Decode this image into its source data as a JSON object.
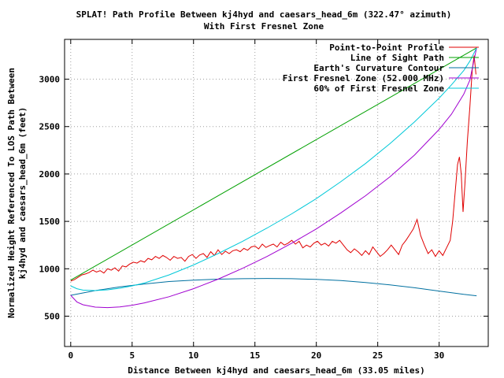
{
  "chart_data": {
    "type": "line",
    "title_line1": "SPLAT! Path Profile Between kj4hyd and caesars_head_6m (322.47° azimuth)",
    "title_line2": "With First Fresnel Zone",
    "xlabel": "Distance Between kj4hyd and caesars_head_6m (33.05 miles)",
    "ylabel_line1": "Normalized Height Referenced To LOS Path Between",
    "ylabel_line2": "kj4hyd and caesars_head_6m (feet)",
    "xlim": [
      -0.5,
      34
    ],
    "ylim": [
      180,
      3420
    ],
    "x_ticks": [
      0,
      5,
      10,
      15,
      20,
      25,
      30
    ],
    "y_ticks": [
      500,
      1000,
      1500,
      2000,
      2500,
      3000
    ],
    "grid": true,
    "legend_position": "top-right",
    "series": [
      {
        "name": "Point-to-Point Profile",
        "color": "#e00000",
        "points": [
          [
            0,
            870
          ],
          [
            0.3,
            885
          ],
          [
            0.6,
            910
          ],
          [
            0.9,
            935
          ],
          [
            1.2,
            945
          ],
          [
            1.5,
            960
          ],
          [
            1.8,
            985
          ],
          [
            2.1,
            965
          ],
          [
            2.4,
            980
          ],
          [
            2.7,
            955
          ],
          [
            3.0,
            1000
          ],
          [
            3.3,
            985
          ],
          [
            3.6,
            1010
          ],
          [
            3.9,
            975
          ],
          [
            4.2,
            1030
          ],
          [
            4.5,
            1020
          ],
          [
            4.8,
            1050
          ],
          [
            5.1,
            1070
          ],
          [
            5.4,
            1060
          ],
          [
            5.7,
            1085
          ],
          [
            6.0,
            1070
          ],
          [
            6.3,
            1110
          ],
          [
            6.6,
            1095
          ],
          [
            6.9,
            1130
          ],
          [
            7.2,
            1110
          ],
          [
            7.5,
            1140
          ],
          [
            7.8,
            1120
          ],
          [
            8.1,
            1090
          ],
          [
            8.4,
            1130
          ],
          [
            8.7,
            1110
          ],
          [
            9.0,
            1120
          ],
          [
            9.3,
            1080
          ],
          [
            9.6,
            1130
          ],
          [
            9.9,
            1150
          ],
          [
            10.2,
            1110
          ],
          [
            10.5,
            1145
          ],
          [
            10.8,
            1160
          ],
          [
            11.1,
            1120
          ],
          [
            11.4,
            1180
          ],
          [
            11.7,
            1140
          ],
          [
            12.0,
            1200
          ],
          [
            12.3,
            1150
          ],
          [
            12.6,
            1185
          ],
          [
            12.9,
            1160
          ],
          [
            13.2,
            1190
          ],
          [
            13.5,
            1200
          ],
          [
            13.8,
            1180
          ],
          [
            14.1,
            1215
          ],
          [
            14.4,
            1195
          ],
          [
            14.7,
            1230
          ],
          [
            15.0,
            1240
          ],
          [
            15.3,
            1210
          ],
          [
            15.6,
            1260
          ],
          [
            15.9,
            1225
          ],
          [
            16.2,
            1245
          ],
          [
            16.5,
            1260
          ],
          [
            16.8,
            1230
          ],
          [
            17.1,
            1280
          ],
          [
            17.4,
            1250
          ],
          [
            17.7,
            1270
          ],
          [
            18.0,
            1300
          ],
          [
            18.3,
            1260
          ],
          [
            18.6,
            1290
          ],
          [
            18.9,
            1220
          ],
          [
            19.2,
            1250
          ],
          [
            19.5,
            1230
          ],
          [
            19.8,
            1270
          ],
          [
            20.1,
            1290
          ],
          [
            20.4,
            1250
          ],
          [
            20.7,
            1270
          ],
          [
            21.0,
            1240
          ],
          [
            21.3,
            1290
          ],
          [
            21.6,
            1270
          ],
          [
            21.9,
            1300
          ],
          [
            22.2,
            1250
          ],
          [
            22.5,
            1200
          ],
          [
            22.8,
            1170
          ],
          [
            23.1,
            1210
          ],
          [
            23.4,
            1180
          ],
          [
            23.7,
            1140
          ],
          [
            24.0,
            1190
          ],
          [
            24.3,
            1150
          ],
          [
            24.6,
            1230
          ],
          [
            24.9,
            1180
          ],
          [
            25.2,
            1130
          ],
          [
            25.5,
            1160
          ],
          [
            25.8,
            1200
          ],
          [
            26.1,
            1250
          ],
          [
            26.4,
            1200
          ],
          [
            26.7,
            1150
          ],
          [
            27.0,
            1250
          ],
          [
            27.3,
            1300
          ],
          [
            27.6,
            1360
          ],
          [
            27.9,
            1420
          ],
          [
            28.2,
            1520
          ],
          [
            28.5,
            1350
          ],
          [
            28.8,
            1250
          ],
          [
            29.1,
            1160
          ],
          [
            29.4,
            1200
          ],
          [
            29.7,
            1130
          ],
          [
            30.0,
            1190
          ],
          [
            30.3,
            1140
          ],
          [
            30.6,
            1220
          ],
          [
            30.9,
            1300
          ],
          [
            31.1,
            1500
          ],
          [
            31.3,
            1800
          ],
          [
            31.5,
            2100
          ],
          [
            31.65,
            2180
          ],
          [
            31.8,
            2000
          ],
          [
            31.95,
            1600
          ],
          [
            32.1,
            1900
          ],
          [
            32.3,
            2350
          ],
          [
            32.5,
            2700
          ],
          [
            32.7,
            3100
          ],
          [
            32.85,
            3250
          ],
          [
            33.0,
            3050
          ]
        ]
      },
      {
        "name": "Line of Sight Path",
        "color": "#00a000",
        "points": [
          [
            0,
            880
          ],
          [
            33.05,
            3330
          ]
        ]
      },
      {
        "name": "Earth's Curvature Contour",
        "color": "#0070a0",
        "points": [
          [
            0,
            720
          ],
          [
            2,
            770
          ],
          [
            4,
            810
          ],
          [
            6,
            840
          ],
          [
            8,
            865
          ],
          [
            10,
            880
          ],
          [
            12,
            890
          ],
          [
            14,
            895
          ],
          [
            16,
            898
          ],
          [
            18,
            895
          ],
          [
            20,
            888
          ],
          [
            22,
            875
          ],
          [
            24,
            855
          ],
          [
            26,
            830
          ],
          [
            28,
            800
          ],
          [
            30,
            765
          ],
          [
            32,
            730
          ],
          [
            33.05,
            715
          ]
        ]
      },
      {
        "name": "First Fresnel Zone (52.000 MHz)",
        "color": "#a000d0",
        "points": [
          [
            0,
            720
          ],
          [
            0.5,
            650
          ],
          [
            1,
            620
          ],
          [
            2,
            595
          ],
          [
            3,
            590
          ],
          [
            4,
            598
          ],
          [
            5,
            615
          ],
          [
            6,
            640
          ],
          [
            8,
            705
          ],
          [
            10,
            790
          ],
          [
            12,
            890
          ],
          [
            14,
            1005
          ],
          [
            16,
            1130
          ],
          [
            18,
            1270
          ],
          [
            20,
            1420
          ],
          [
            22,
            1590
          ],
          [
            24,
            1770
          ],
          [
            26,
            1970
          ],
          [
            28,
            2200
          ],
          [
            30,
            2470
          ],
          [
            31,
            2630
          ],
          [
            32,
            2840
          ],
          [
            32.5,
            2990
          ],
          [
            33.05,
            3330
          ]
        ]
      },
      {
        "name": "60% of First Fresnel Zone",
        "color": "#00c8d8",
        "points": [
          [
            0,
            820
          ],
          [
            0.5,
            790
          ],
          [
            1,
            775
          ],
          [
            2,
            770
          ],
          [
            3,
            778
          ],
          [
            4,
            795
          ],
          [
            5,
            820
          ],
          [
            6,
            850
          ],
          [
            8,
            935
          ],
          [
            10,
            1040
          ],
          [
            12,
            1160
          ],
          [
            14,
            1290
          ],
          [
            16,
            1430
          ],
          [
            18,
            1580
          ],
          [
            20,
            1740
          ],
          [
            22,
            1920
          ],
          [
            24,
            2110
          ],
          [
            26,
            2320
          ],
          [
            28,
            2550
          ],
          [
            30,
            2800
          ],
          [
            31,
            2940
          ],
          [
            32,
            3090
          ],
          [
            32.5,
            3190
          ],
          [
            33.05,
            3330
          ]
        ]
      }
    ]
  }
}
